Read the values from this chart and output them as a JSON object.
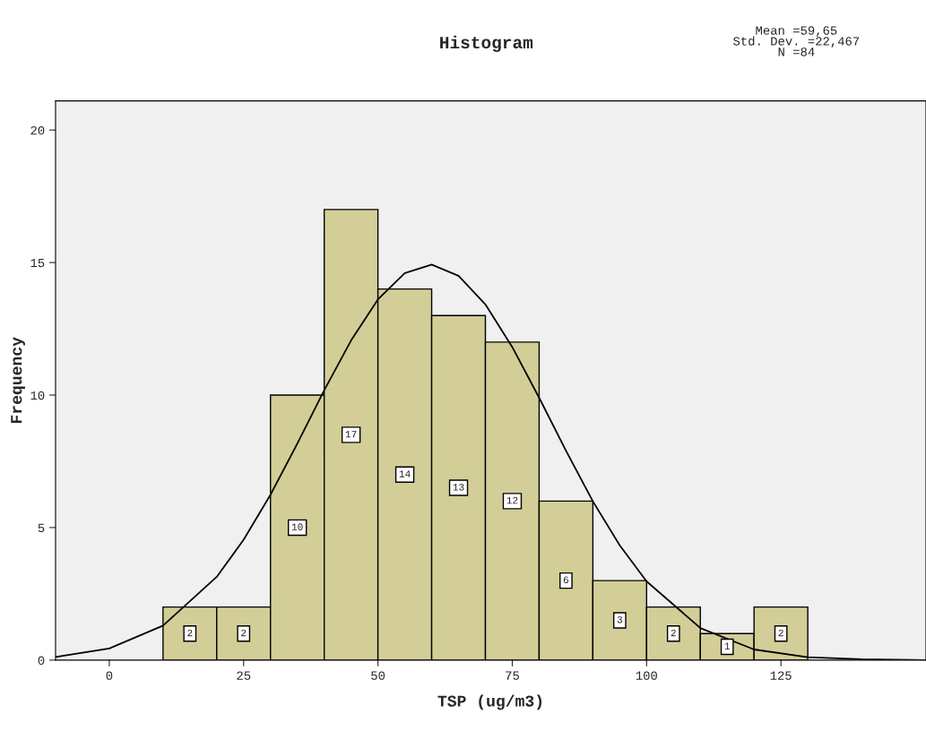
{
  "chart_data": {
    "type": "histogram",
    "title": "Histogram",
    "xlabel": "TSP (ug/m3)",
    "ylabel": "Frequency",
    "annotations": [
      "Mean =59,65\nStd. Dev. =22,467\nN =84"
    ],
    "series": [
      {
        "color": "#d3ce97",
        "bins": [
          10,
          20,
          30,
          40,
          50,
          60,
          70,
          80,
          90,
          100,
          110,
          120,
          130
        ],
        "values": [
          2,
          2,
          10,
          17,
          14,
          13,
          12,
          6,
          3,
          2,
          1,
          2
        ],
        "value_labels": [
          "2",
          "2",
          "10",
          "17",
          "14",
          "13",
          "12",
          "6",
          "3",
          "2",
          "1",
          "2"
        ]
      },
      {
        "type": "line",
        "color": "#000000",
        "x": [
          -10,
          0,
          10,
          20,
          25,
          30,
          35,
          40,
          45,
          50,
          55,
          60,
          65,
          70,
          75,
          80,
          85,
          90,
          95,
          100,
          110,
          120,
          130,
          140,
          152
        ],
        "values": [
          0.12,
          0.44,
          1.3,
          3.14,
          4.54,
          6.24,
          8.17,
          10.18,
          12.06,
          13.61,
          14.6,
          14.92,
          14.5,
          13.42,
          11.81,
          9.9,
          7.9,
          5.99,
          4.33,
          2.97,
          1.21,
          0.4,
          0.11,
          0.03,
          0.0
        ]
      }
    ],
    "grid": false,
    "xlim": [
      -10,
      152
    ],
    "ylim": [
      0,
      21.1
    ],
    "xticks": [
      0,
      25,
      50,
      75,
      100,
      125
    ],
    "yticks": [
      0,
      5,
      10,
      15,
      20
    ]
  }
}
